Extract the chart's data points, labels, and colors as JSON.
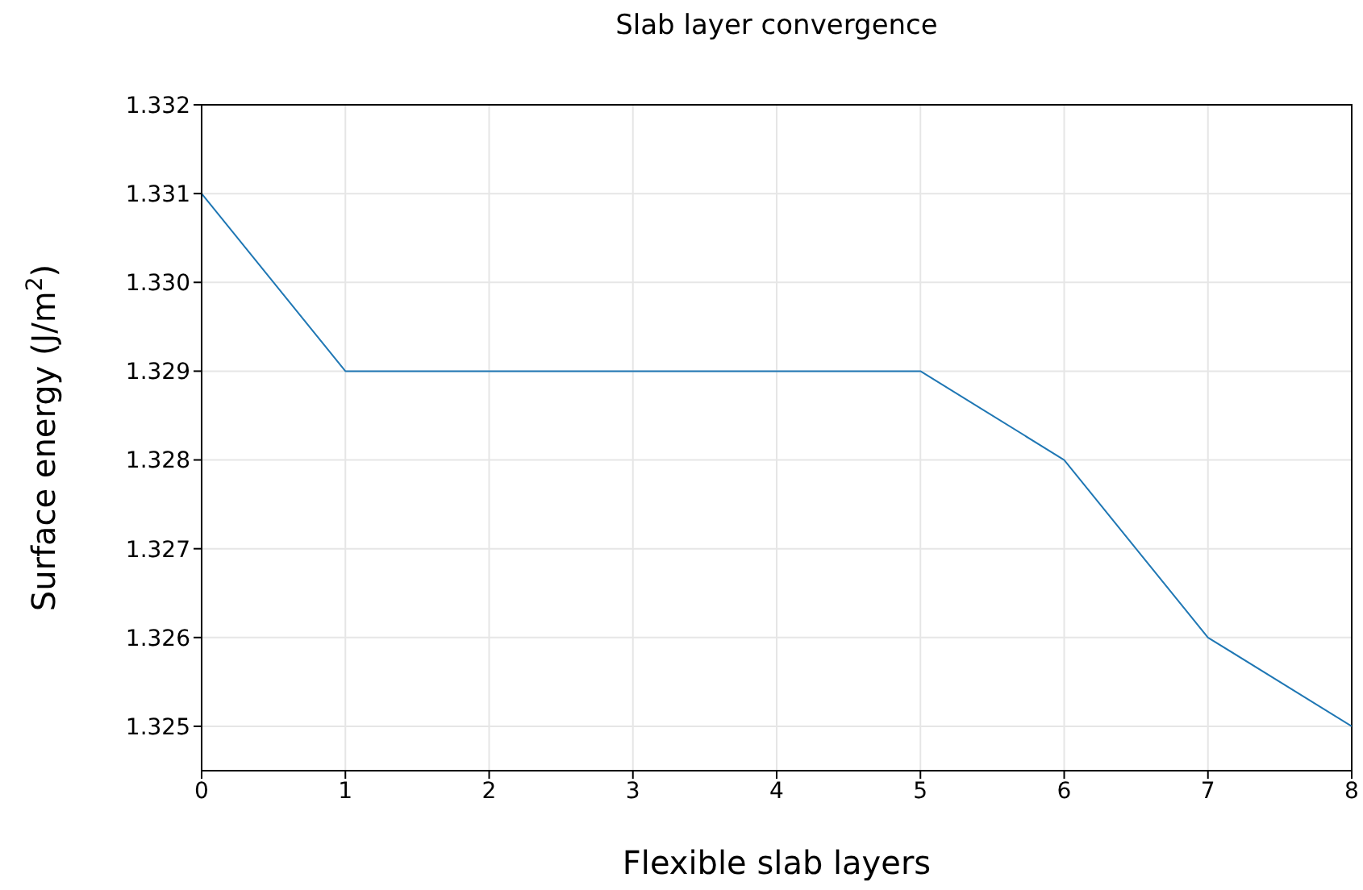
{
  "chart_data": {
    "type": "line",
    "title": "Slab layer convergence",
    "xlabel": "Flexible slab layers",
    "ylabel": "Surface energy (J/m$^{2}$)",
    "x": [
      0,
      1,
      2,
      3,
      4,
      5,
      6,
      7,
      8
    ],
    "series": [
      {
        "color": "#1f77b4",
        "values": [
          1.331,
          1.329,
          1.329,
          1.329,
          1.329,
          1.329,
          1.328,
          1.326,
          1.325
        ]
      }
    ],
    "xlim": [
      0,
      8
    ],
    "xticks": [
      0,
      1,
      2,
      3,
      4,
      5,
      6,
      7,
      8
    ],
    "ylim": [
      1.3245,
      1.332
    ],
    "yticks": [
      1.325,
      1.326,
      1.327,
      1.328,
      1.329,
      {
        "value": 1.33,
        "label": "1.330"
      },
      1.331,
      1.332
    ],
    "grid": true,
    "marker": "none",
    "line_style": "solid",
    "legend": false
  }
}
